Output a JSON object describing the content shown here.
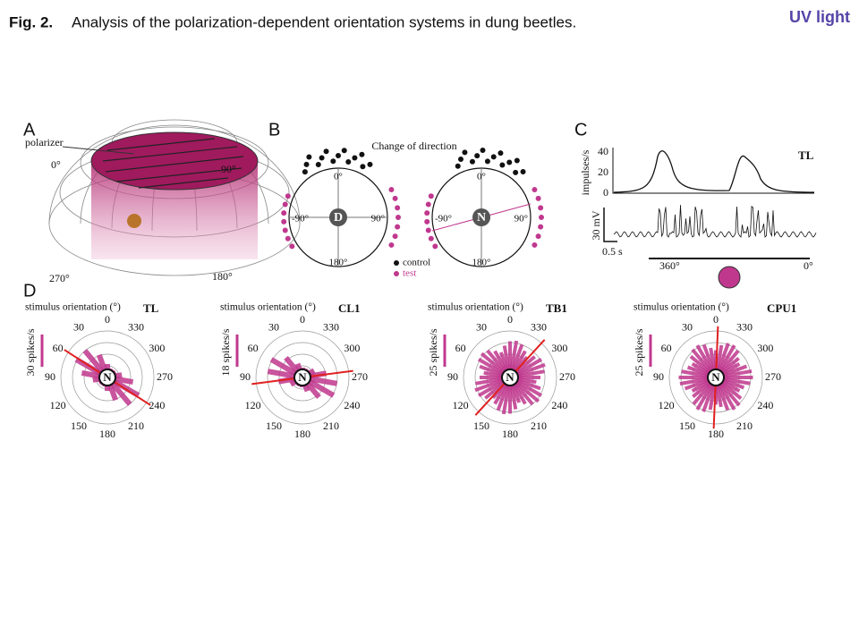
{
  "header": {
    "fig_label": "Fig. 2.",
    "title": "Analysis of the polarization-dependent orientation systems in dung beetles.",
    "badge": "UV light"
  },
  "panel_a": {
    "label": "A",
    "polarizer": "polarizer",
    "angles": [
      "0°",
      "90°",
      "270°",
      "180°"
    ]
  },
  "panel_b": {
    "label": "B",
    "title": "Change of direction",
    "plots": [
      {
        "center": "D",
        "angles": [
          "0°",
          "-90°",
          "90°",
          "180°"
        ]
      },
      {
        "center": "N",
        "angles": [
          "0°",
          "-90°",
          "90°",
          "180°"
        ]
      }
    ],
    "legend": [
      "control",
      "test"
    ]
  },
  "panel_c": {
    "label": "C",
    "ylabel": "impulses/s",
    "yticks": [
      "40",
      "20",
      "0"
    ],
    "cell": "TL",
    "scale_v": "30 mV",
    "scale_t": "0.5 s",
    "x_start": "360°",
    "x_end": "0°"
  },
  "panel_d": {
    "label": "D",
    "plots": [
      {
        "title": "stimulus orientation (°)",
        "cell": "TL",
        "scale": "30 spikes/s",
        "center": "N",
        "angles": [
          "0",
          "30",
          "60",
          "90",
          "120",
          "150",
          "180",
          "210",
          "240",
          "270",
          "300",
          "330"
        ]
      },
      {
        "title": "stimulus orientation (°)",
        "cell": "CL1",
        "scale": "18 spikes/s",
        "center": "N",
        "angles": [
          "0",
          "30",
          "60",
          "90",
          "120",
          "150",
          "180",
          "210",
          "240",
          "270",
          "300",
          "330"
        ]
      },
      {
        "title": "stimulus orientation (°)",
        "cell": "TB1",
        "scale": "25 spikes/s",
        "center": "N",
        "angles": [
          "0",
          "30",
          "60",
          "90",
          "120",
          "150",
          "180",
          "210",
          "240",
          "270",
          "300",
          "330"
        ]
      },
      {
        "title": "stimulus orientation (°)",
        "cell": "CPU1",
        "scale": "25 spikes/s",
        "center": "N",
        "angles": [
          "0",
          "30",
          "60",
          "90",
          "120",
          "150",
          "180",
          "210",
          "240",
          "270",
          "300",
          "330"
        ]
      }
    ]
  }
}
